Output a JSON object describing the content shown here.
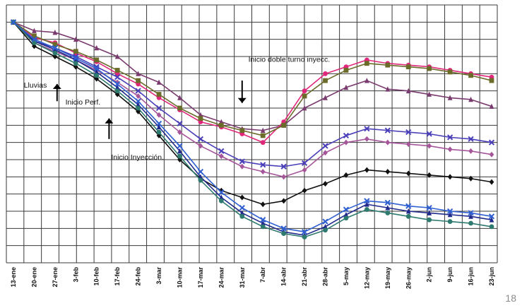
{
  "chart_data": {
    "type": "line",
    "title": "",
    "xlabel": "",
    "ylabel": "",
    "grid": true,
    "categories": [
      "13-ene",
      "20-ene",
      "27-ene",
      "3-feb",
      "10-feb",
      "17-feb",
      "24-feb",
      "3-mar",
      "10-mar",
      "17-mar",
      "24-mar",
      "31-mar",
      "7-abr",
      "14-abr",
      "21-abr",
      "28-abr",
      "5-may",
      "12-may",
      "19-may",
      "26-may",
      "2-jun",
      "9-jun",
      "16-jun",
      "23-jun"
    ],
    "ylim": [
      0,
      15
    ],
    "annotations": [
      {
        "text": "Lluvias",
        "x": 0.5,
        "y": 10.2
      },
      {
        "text": "Inicio Perf.",
        "x": 2.5,
        "y": 9.2
      },
      {
        "text": "Inicio Inyección.",
        "x": 4.7,
        "y": 6.0
      },
      {
        "text": "Inicio doble turno inyecc.",
        "x": 11.3,
        "y": 11.7
      }
    ],
    "arrows": [
      {
        "x": 2.1,
        "direction": "up",
        "y_tip": 10.4,
        "y_tail": 9.4
      },
      {
        "x": 4.6,
        "direction": "up",
        "y_tip": 8.4,
        "y_tail": 7.2
      },
      {
        "x": 11.0,
        "direction": "down",
        "y_tip": 9.3,
        "y_tail": 10.6
      }
    ],
    "series": [
      {
        "color": "#7a3b6f",
        "marker": "triangle",
        "values": [
          14.0,
          13.5,
          13.4,
          13.0,
          12.5,
          12.0,
          11.0,
          10.5,
          9.6,
          8.6,
          8.2,
          7.8,
          7.7,
          8.0,
          9.0,
          9.6,
          10.2,
          10.6,
          10.1,
          10.0,
          9.8,
          9.6,
          9.5,
          9.1
        ]
      },
      {
        "color": "#e0287a",
        "marker": "circle",
        "values": [
          14.0,
          13.1,
          12.8,
          12.2,
          11.7,
          11.0,
          10.4,
          9.6,
          8.9,
          8.2,
          7.9,
          7.5,
          7.0,
          8.2,
          10.0,
          11.0,
          11.4,
          11.8,
          11.6,
          11.5,
          11.4,
          11.2,
          11.0,
          10.8
        ]
      },
      {
        "color": "#6b6b2a",
        "marker": "square",
        "values": [
          14.0,
          13.2,
          12.7,
          12.3,
          11.8,
          11.2,
          10.6,
          9.8,
          9.0,
          8.4,
          8.0,
          7.7,
          7.4,
          8.0,
          9.7,
          10.6,
          11.2,
          11.6,
          11.5,
          11.4,
          11.3,
          11.1,
          10.9,
          10.6
        ]
      },
      {
        "color": "#4a3fb8",
        "marker": "x",
        "values": [
          14.0,
          12.9,
          12.5,
          12.0,
          11.4,
          10.8,
          10.0,
          9.0,
          8.1,
          7.2,
          6.5,
          5.9,
          5.7,
          5.6,
          5.8,
          6.8,
          7.4,
          7.8,
          7.7,
          7.6,
          7.5,
          7.3,
          7.2,
          7.0
        ]
      },
      {
        "color": "#a5569a",
        "marker": "diamond",
        "values": [
          14.0,
          12.8,
          12.3,
          11.8,
          11.2,
          10.5,
          9.7,
          8.6,
          7.6,
          6.8,
          6.2,
          5.6,
          5.3,
          5.0,
          5.4,
          6.4,
          7.0,
          7.2,
          7.0,
          6.9,
          6.8,
          6.6,
          6.5,
          6.3
        ]
      },
      {
        "color": "#111111",
        "marker": "diamond",
        "values": [
          14.0,
          12.6,
          12.0,
          11.4,
          10.7,
          9.8,
          8.8,
          7.4,
          6.0,
          4.9,
          4.2,
          3.8,
          3.4,
          3.6,
          4.2,
          4.6,
          5.1,
          5.4,
          5.3,
          5.2,
          5.1,
          5.0,
          4.9,
          4.7
        ]
      },
      {
        "color": "#1f2a8c",
        "marker": "triangle",
        "values": [
          14.0,
          12.9,
          12.4,
          11.8,
          11.1,
          10.2,
          9.2,
          7.9,
          6.5,
          5.0,
          3.8,
          2.9,
          2.3,
          1.8,
          1.6,
          2.1,
          2.8,
          3.4,
          3.2,
          3.0,
          2.9,
          2.8,
          2.7,
          2.5
        ]
      },
      {
        "color": "#2e7a6e",
        "marker": "circle",
        "values": [
          14.0,
          12.8,
          12.2,
          11.6,
          10.9,
          10.0,
          9.0,
          7.6,
          6.2,
          4.8,
          3.6,
          2.7,
          2.1,
          1.7,
          1.5,
          1.9,
          2.6,
          3.1,
          2.9,
          2.7,
          2.5,
          2.4,
          2.3,
          2.1
        ]
      },
      {
        "color": "#2f5fd0",
        "marker": "x",
        "values": [
          14.0,
          13.0,
          12.5,
          11.9,
          11.3,
          10.4,
          9.4,
          8.1,
          6.8,
          5.3,
          4.1,
          3.2,
          2.5,
          2.0,
          1.8,
          2.4,
          3.1,
          3.6,
          3.5,
          3.3,
          3.2,
          3.0,
          2.9,
          2.7
        ]
      }
    ]
  },
  "page_number": "18"
}
